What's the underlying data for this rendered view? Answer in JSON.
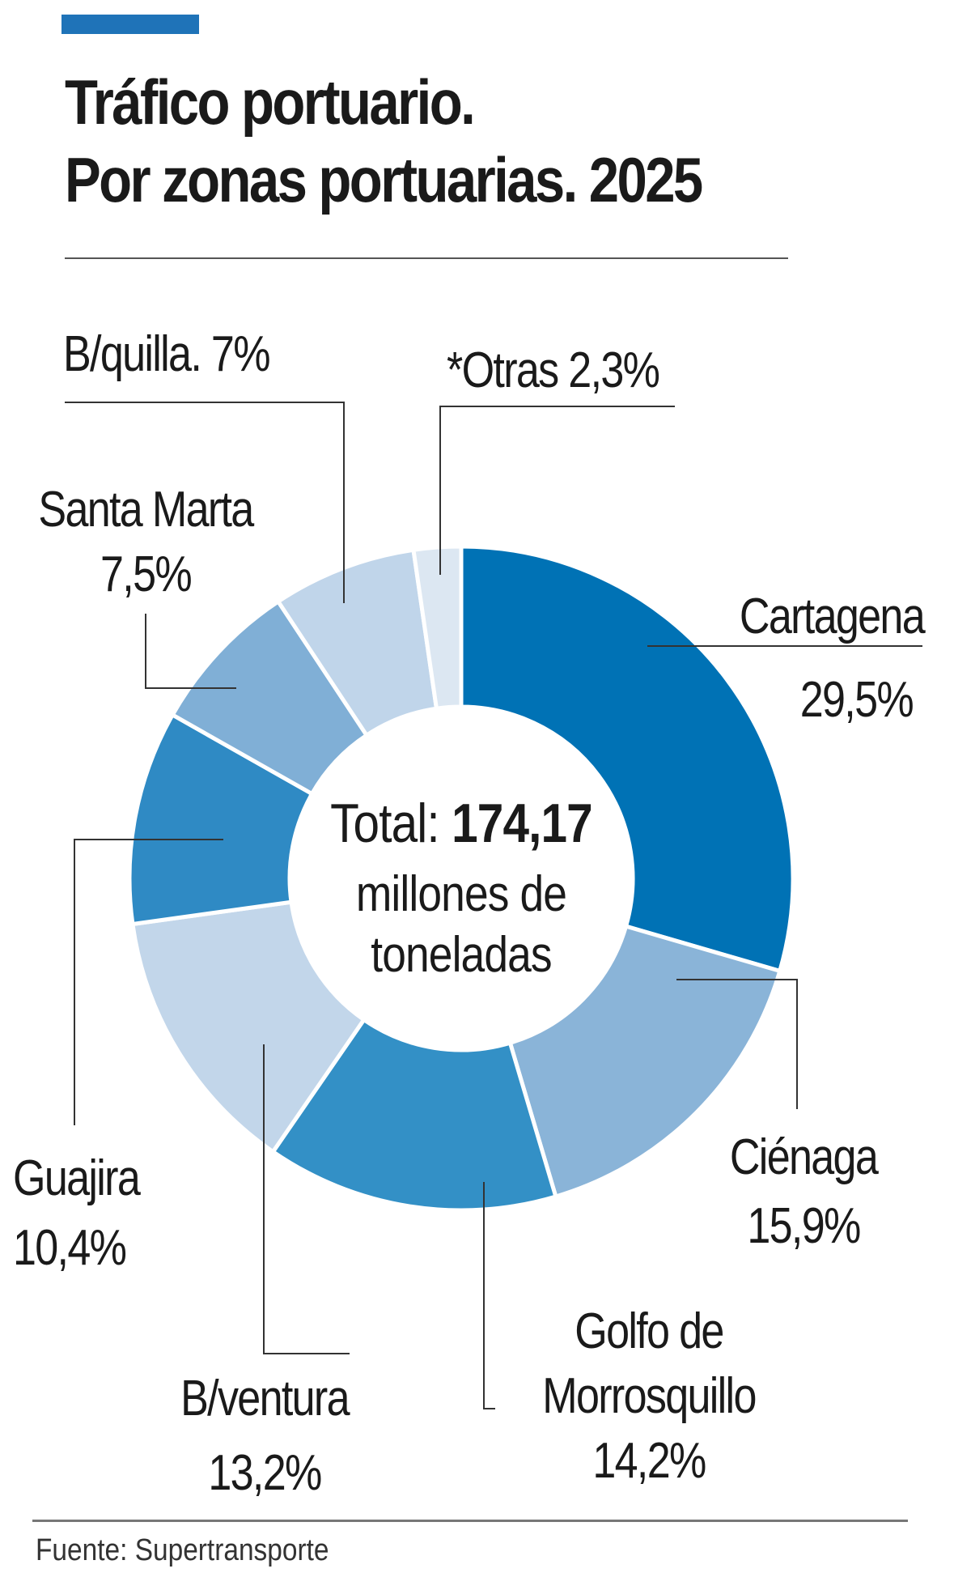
{
  "header": {
    "title_line1": "Tráfico portuario.",
    "title_line2": "Por zonas portuarias. 2025"
  },
  "center": {
    "total_label": "Total:",
    "total_value": "174,17",
    "unit_line1": "millones de",
    "unit_line2": "toneladas"
  },
  "source": "Fuente: Supertransporte",
  "chart_data": {
    "type": "pie",
    "title": "Tráfico portuario. Por zonas portuarias. 2025",
    "total": "174,17 millones de toneladas",
    "categories": [
      "Cartagena",
      "Ciénaga",
      "Golfo de Morrosquillo",
      "B/ventura",
      "Guajira",
      "Santa Marta",
      "B/quilla.",
      "*Otras"
    ],
    "values": [
      29.5,
      15.9,
      14.2,
      13.2,
      10.4,
      7.5,
      7,
      2.3
    ],
    "value_labels": [
      "29,5%",
      "15,9%",
      "14,2%",
      "13,2%",
      "10,4%",
      "7,5%",
      "7%",
      "2,3%"
    ],
    "colors": [
      "#0072b5",
      "#8ab4d8",
      "#3390c6",
      "#c2d6ea",
      "#2f8ac4",
      "#80afd6",
      "#c0d5ea",
      "#dce7f2"
    ]
  }
}
